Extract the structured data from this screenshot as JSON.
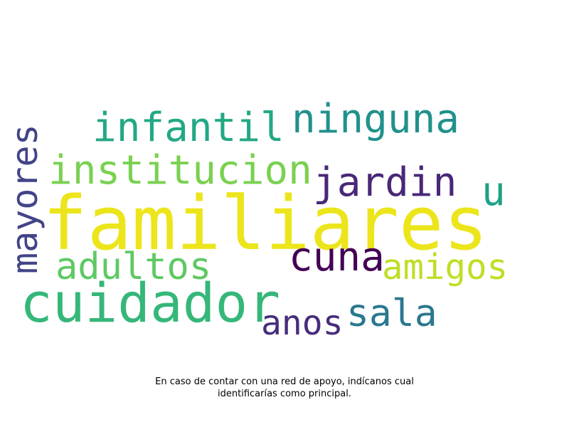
{
  "word_cloud": {
    "words": [
      {
        "text": "familiares",
        "color": "#ECE51B"
      },
      {
        "text": "cuidador",
        "color": "#35B779"
      },
      {
        "text": "institucion",
        "color": "#7AD151"
      },
      {
        "text": "infantil",
        "color": "#22A884"
      },
      {
        "text": "ninguna",
        "color": "#21918C"
      },
      {
        "text": "jardin",
        "color": "#482878"
      },
      {
        "text": "mayores",
        "color": "#414487"
      },
      {
        "text": "adultos",
        "color": "#5EC962"
      },
      {
        "text": "cuna",
        "color": "#440154"
      },
      {
        "text": "amigos",
        "color": "#BDDF26"
      },
      {
        "text": "sala",
        "color": "#2A788E"
      },
      {
        "text": "anos",
        "color": "#472D7B"
      },
      {
        "text": "u",
        "color": "#1FA187"
      }
    ]
  },
  "caption": {
    "line1": "En caso de contar con una red de apoyo, indícanos cual",
    "line2": "identificarías como principal."
  }
}
